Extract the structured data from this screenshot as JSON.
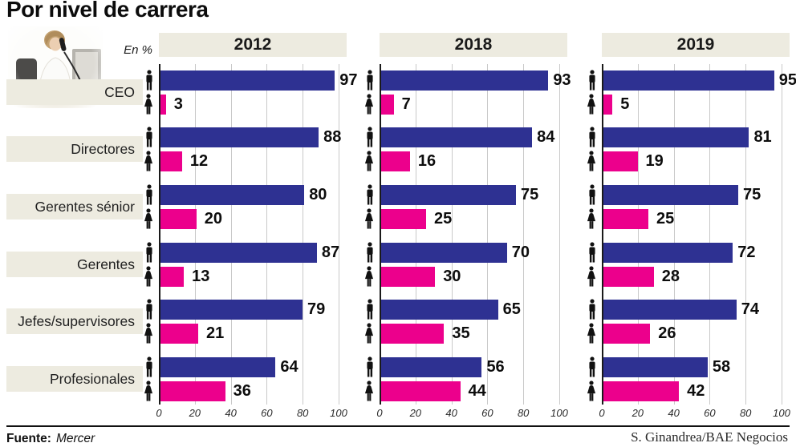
{
  "title": "Por nivel de carrera",
  "unit_label": "En %",
  "footer": {
    "source_label": "Fuente:",
    "source_value": "Mercer",
    "credit": "S. Ginandrea/BAE Negocios"
  },
  "colors": {
    "male_bar": "#2E3192",
    "female_bar": "#EC008C",
    "panel_bg": "#EDEBE0",
    "grid": "#C9C9C9",
    "axis": "#1A1A1A"
  },
  "chart_data": {
    "type": "bar",
    "orientation": "horizontal",
    "unit": "%",
    "title": "Por nivel de carrera",
    "categories": [
      "CEO",
      "Directores",
      "Gerentes sénior",
      "Gerentes",
      "Jefes/supervisores",
      "Profesionales"
    ],
    "axis_ticks": [
      0,
      20,
      40,
      60,
      80,
      100
    ],
    "xlim": [
      0,
      100
    ],
    "grid": true,
    "panels": [
      {
        "year": "2012",
        "series": [
          {
            "name": "hombres",
            "icon": "male-icon",
            "values": [
              97,
              88,
              80,
              87,
              79,
              64
            ]
          },
          {
            "name": "mujeres",
            "icon": "female-icon",
            "values": [
              3,
              12,
              20,
              13,
              21,
              36
            ]
          }
        ]
      },
      {
        "year": "2018",
        "series": [
          {
            "name": "hombres",
            "icon": "male-icon",
            "values": [
              93,
              84,
              75,
              70,
              65,
              56
            ]
          },
          {
            "name": "mujeres",
            "icon": "female-icon",
            "values": [
              7,
              16,
              25,
              30,
              35,
              44
            ]
          }
        ]
      },
      {
        "year": "2019",
        "series": [
          {
            "name": "hombres",
            "icon": "male-icon",
            "values": [
              95,
              81,
              75,
              72,
              74,
              58
            ]
          },
          {
            "name": "mujeres",
            "icon": "female-icon",
            "values": [
              5,
              19,
              25,
              28,
              26,
              42
            ]
          }
        ]
      }
    ]
  }
}
